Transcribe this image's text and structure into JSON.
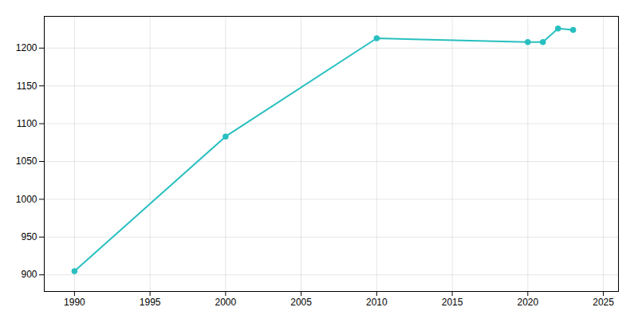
{
  "chart_data": {
    "type": "line",
    "x": [
      1990,
      2000,
      2010,
      2020,
      2021,
      2022,
      2023
    ],
    "values": [
      905,
      1083,
      1213,
      1208,
      1208,
      1226,
      1224
    ],
    "color": "#29BFC0",
    "marker": "circle",
    "xlim": [
      1988,
      2026
    ],
    "ylim": [
      878,
      1242
    ],
    "xticks": [
      1990,
      1995,
      2000,
      2005,
      2010,
      2015,
      2020,
      2025
    ],
    "yticks": [
      900,
      950,
      1000,
      1050,
      1100,
      1150,
      1200
    ],
    "grid": true
  }
}
